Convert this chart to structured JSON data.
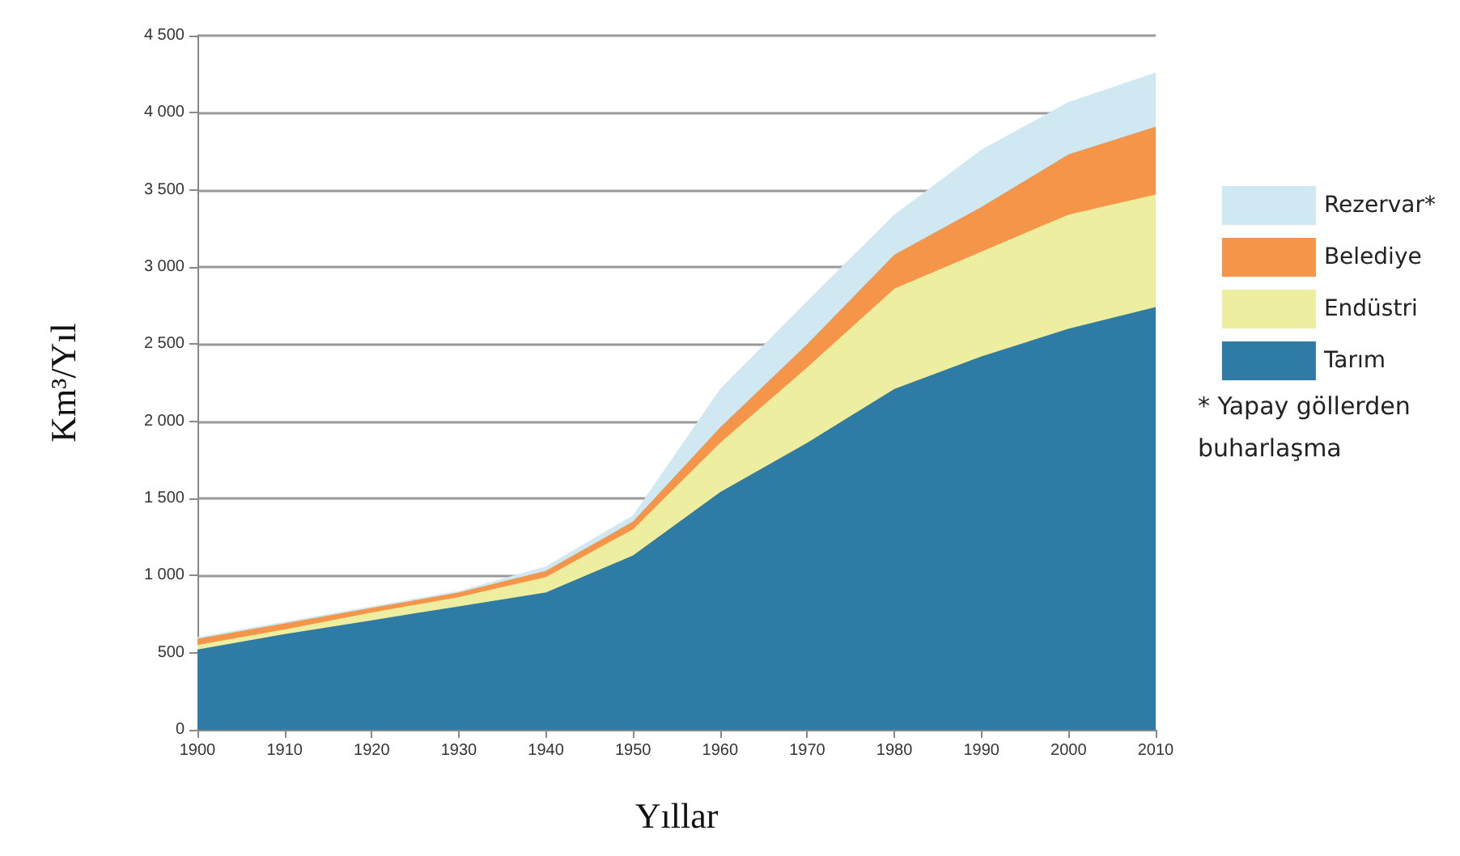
{
  "chart_data": {
    "type": "area",
    "xlabel": "Yıllar",
    "ylabel": "Km³/Yıl",
    "x": [
      1900,
      1910,
      1920,
      1930,
      1940,
      1950,
      1960,
      1970,
      1980,
      1990,
      2000,
      2010
    ],
    "series": [
      {
        "name": "Tarım",
        "color": "#2e7ca6",
        "values": [
          520,
          620,
          710,
          800,
          890,
          1130,
          1540,
          1860,
          2210,
          2420,
          2600,
          2740
        ]
      },
      {
        "name": "Endüstri",
        "color": "#eeeea0",
        "values": [
          30,
          30,
          50,
          60,
          100,
          170,
          320,
          490,
          650,
          680,
          740,
          730
        ]
      },
      {
        "name": "Belediye",
        "color": "#f4954a",
        "values": [
          40,
          40,
          30,
          30,
          40,
          50,
          100,
          150,
          220,
          290,
          390,
          440
        ]
      },
      {
        "name": "Rezervar*",
        "color": "#d0e8f2",
        "values": [
          10,
          10,
          10,
          10,
          30,
          40,
          250,
          280,
          260,
          370,
          340,
          350
        ]
      }
    ],
    "stacked": true,
    "xlim": [
      1900,
      2010
    ],
    "xticks": [
      1900,
      1910,
      1920,
      1930,
      1940,
      1950,
      1960,
      1970,
      1980,
      1990,
      2000,
      2010
    ],
    "ylim": [
      0,
      4500
    ],
    "yticks": [
      0,
      500,
      {
        "value": 1000,
        "label": "1 000"
      },
      {
        "value": 1500,
        "label": "1 500"
      },
      {
        "value": 2000,
        "label": "2 000"
      },
      {
        "value": 2500,
        "label": "2 500"
      },
      {
        "value": 3000,
        "label": "3 000"
      },
      {
        "value": 3500,
        "label": "3 500"
      },
      {
        "value": 4000,
        "label": "4 000"
      },
      {
        "value": 4500,
        "label": "4 500"
      }
    ],
    "grid": "y",
    "legend": "right",
    "marker": "none",
    "annotations": [
      "* Yapay göllerden buharlaşma"
    ]
  }
}
